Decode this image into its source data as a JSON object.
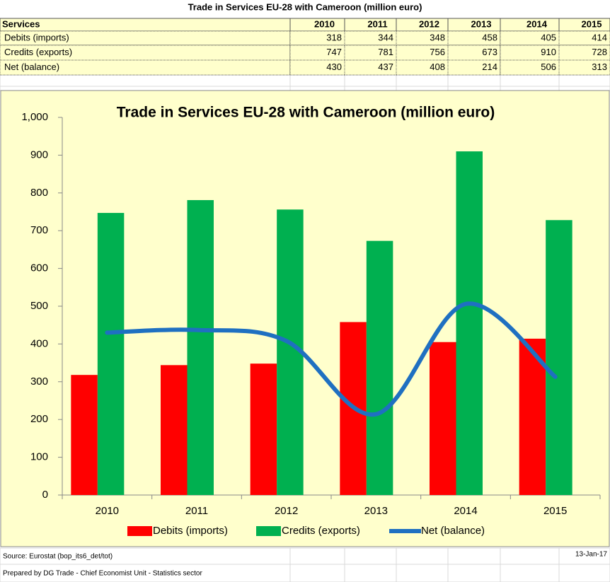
{
  "table": {
    "title": "Trade in Services EU-28 with Cameroon (million euro)",
    "header": [
      "Services",
      "2010",
      "2011",
      "2012",
      "2013",
      "2014",
      "2015"
    ],
    "rows": [
      [
        "Debits (imports)",
        318,
        344,
        348,
        458,
        405,
        414
      ],
      [
        "Credits (exports)",
        747,
        781,
        756,
        673,
        910,
        728
      ],
      [
        "Net (balance)",
        430,
        437,
        408,
        214,
        506,
        313
      ]
    ]
  },
  "chart_data": {
    "type": "bar",
    "title": "Trade in Services EU-28 with Cameroon (million euro)",
    "categories": [
      "2010",
      "2011",
      "2012",
      "2013",
      "2014",
      "2015"
    ],
    "series": [
      {
        "name": "Debits (imports)",
        "color": "#ff0000",
        "values": [
          318,
          344,
          348,
          458,
          405,
          414
        ]
      },
      {
        "name": "Credits (exports)",
        "color": "#00b050",
        "values": [
          747,
          781,
          756,
          673,
          910,
          728
        ]
      },
      {
        "name": "Net (balance)",
        "color": "#1f70c1",
        "type": "line",
        "values": [
          430,
          437,
          408,
          214,
          506,
          313
        ]
      }
    ],
    "ylim": [
      0,
      1000
    ],
    "yticks": [
      0,
      100,
      200,
      300,
      400,
      500,
      600,
      700,
      800,
      900,
      {
        "value": 1000,
        "label": "1,000"
      }
    ],
    "legend": "bottom"
  },
  "footer": {
    "source": "Source: Eurostat (bop_its6_det/tot)",
    "date": "13-Jan-17",
    "prepared": "Prepared by DG Trade - Chief Economist Unit - Statistics sector"
  }
}
